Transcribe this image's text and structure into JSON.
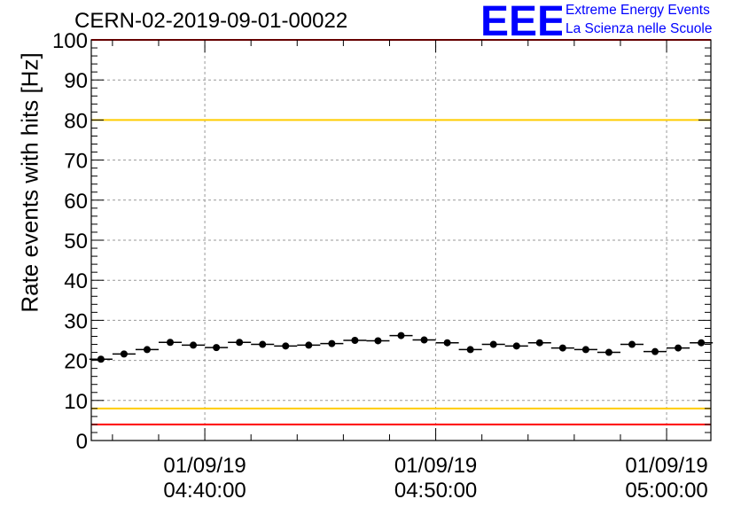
{
  "header": {
    "run_id": "CERN-02-2019-09-01-00022",
    "logo_text": "EEE",
    "logo_line1": "Extreme Energy Events",
    "logo_line2": "La Scienza nelle Scuole",
    "logo_color": "#0000ff"
  },
  "chart_data": {
    "type": "scatter",
    "title": "CERN-02-2019-09-01-00022",
    "xlabel": "",
    "ylabel": "Rate events with hits [Hz]",
    "ylim": [
      0,
      100
    ],
    "xlim": [
      "04:35:05",
      "05:01:55"
    ],
    "x_tick_labels": [
      {
        "time": "04:40:00",
        "date": "01/09/19"
      },
      {
        "time": "04:50:00",
        "date": "01/09/19"
      },
      {
        "time": "05:00:00",
        "date": "01/09/19"
      }
    ],
    "y_ticks": [
      0,
      10,
      20,
      30,
      40,
      50,
      60,
      70,
      80,
      90,
      100
    ],
    "grid": true,
    "bin_width_seconds": 60,
    "series": [
      {
        "marker": "circle",
        "color": "#000000",
        "x": [
          "04:35:30",
          "04:36:30",
          "04:37:30",
          "04:38:30",
          "04:39:30",
          "04:40:30",
          "04:41:30",
          "04:42:30",
          "04:43:30",
          "04:44:30",
          "04:45:30",
          "04:46:30",
          "04:47:30",
          "04:48:30",
          "04:49:30",
          "04:50:30",
          "04:51:30",
          "04:52:30",
          "04:53:30",
          "04:54:30",
          "04:55:30",
          "04:56:30",
          "04:57:30",
          "04:58:30",
          "04:59:30",
          "05:00:30",
          "05:01:30"
        ],
        "y": [
          20.3,
          21.6,
          22.7,
          24.5,
          23.8,
          23.2,
          24.5,
          24.0,
          23.6,
          23.8,
          24.2,
          25.0,
          24.9,
          26.2,
          25.1,
          24.4,
          22.7,
          24.0,
          23.6,
          24.4,
          23.1,
          22.7,
          22.0,
          24.0,
          22.2,
          23.1,
          24.4
        ]
      }
    ],
    "reference_lines": [
      {
        "y": 80,
        "color": "#ffcc00"
      },
      {
        "y": 8,
        "color": "#ffcc00"
      },
      {
        "y": 4,
        "color": "#ff0000"
      },
      {
        "y": 100,
        "color": "#ff0000"
      }
    ]
  }
}
